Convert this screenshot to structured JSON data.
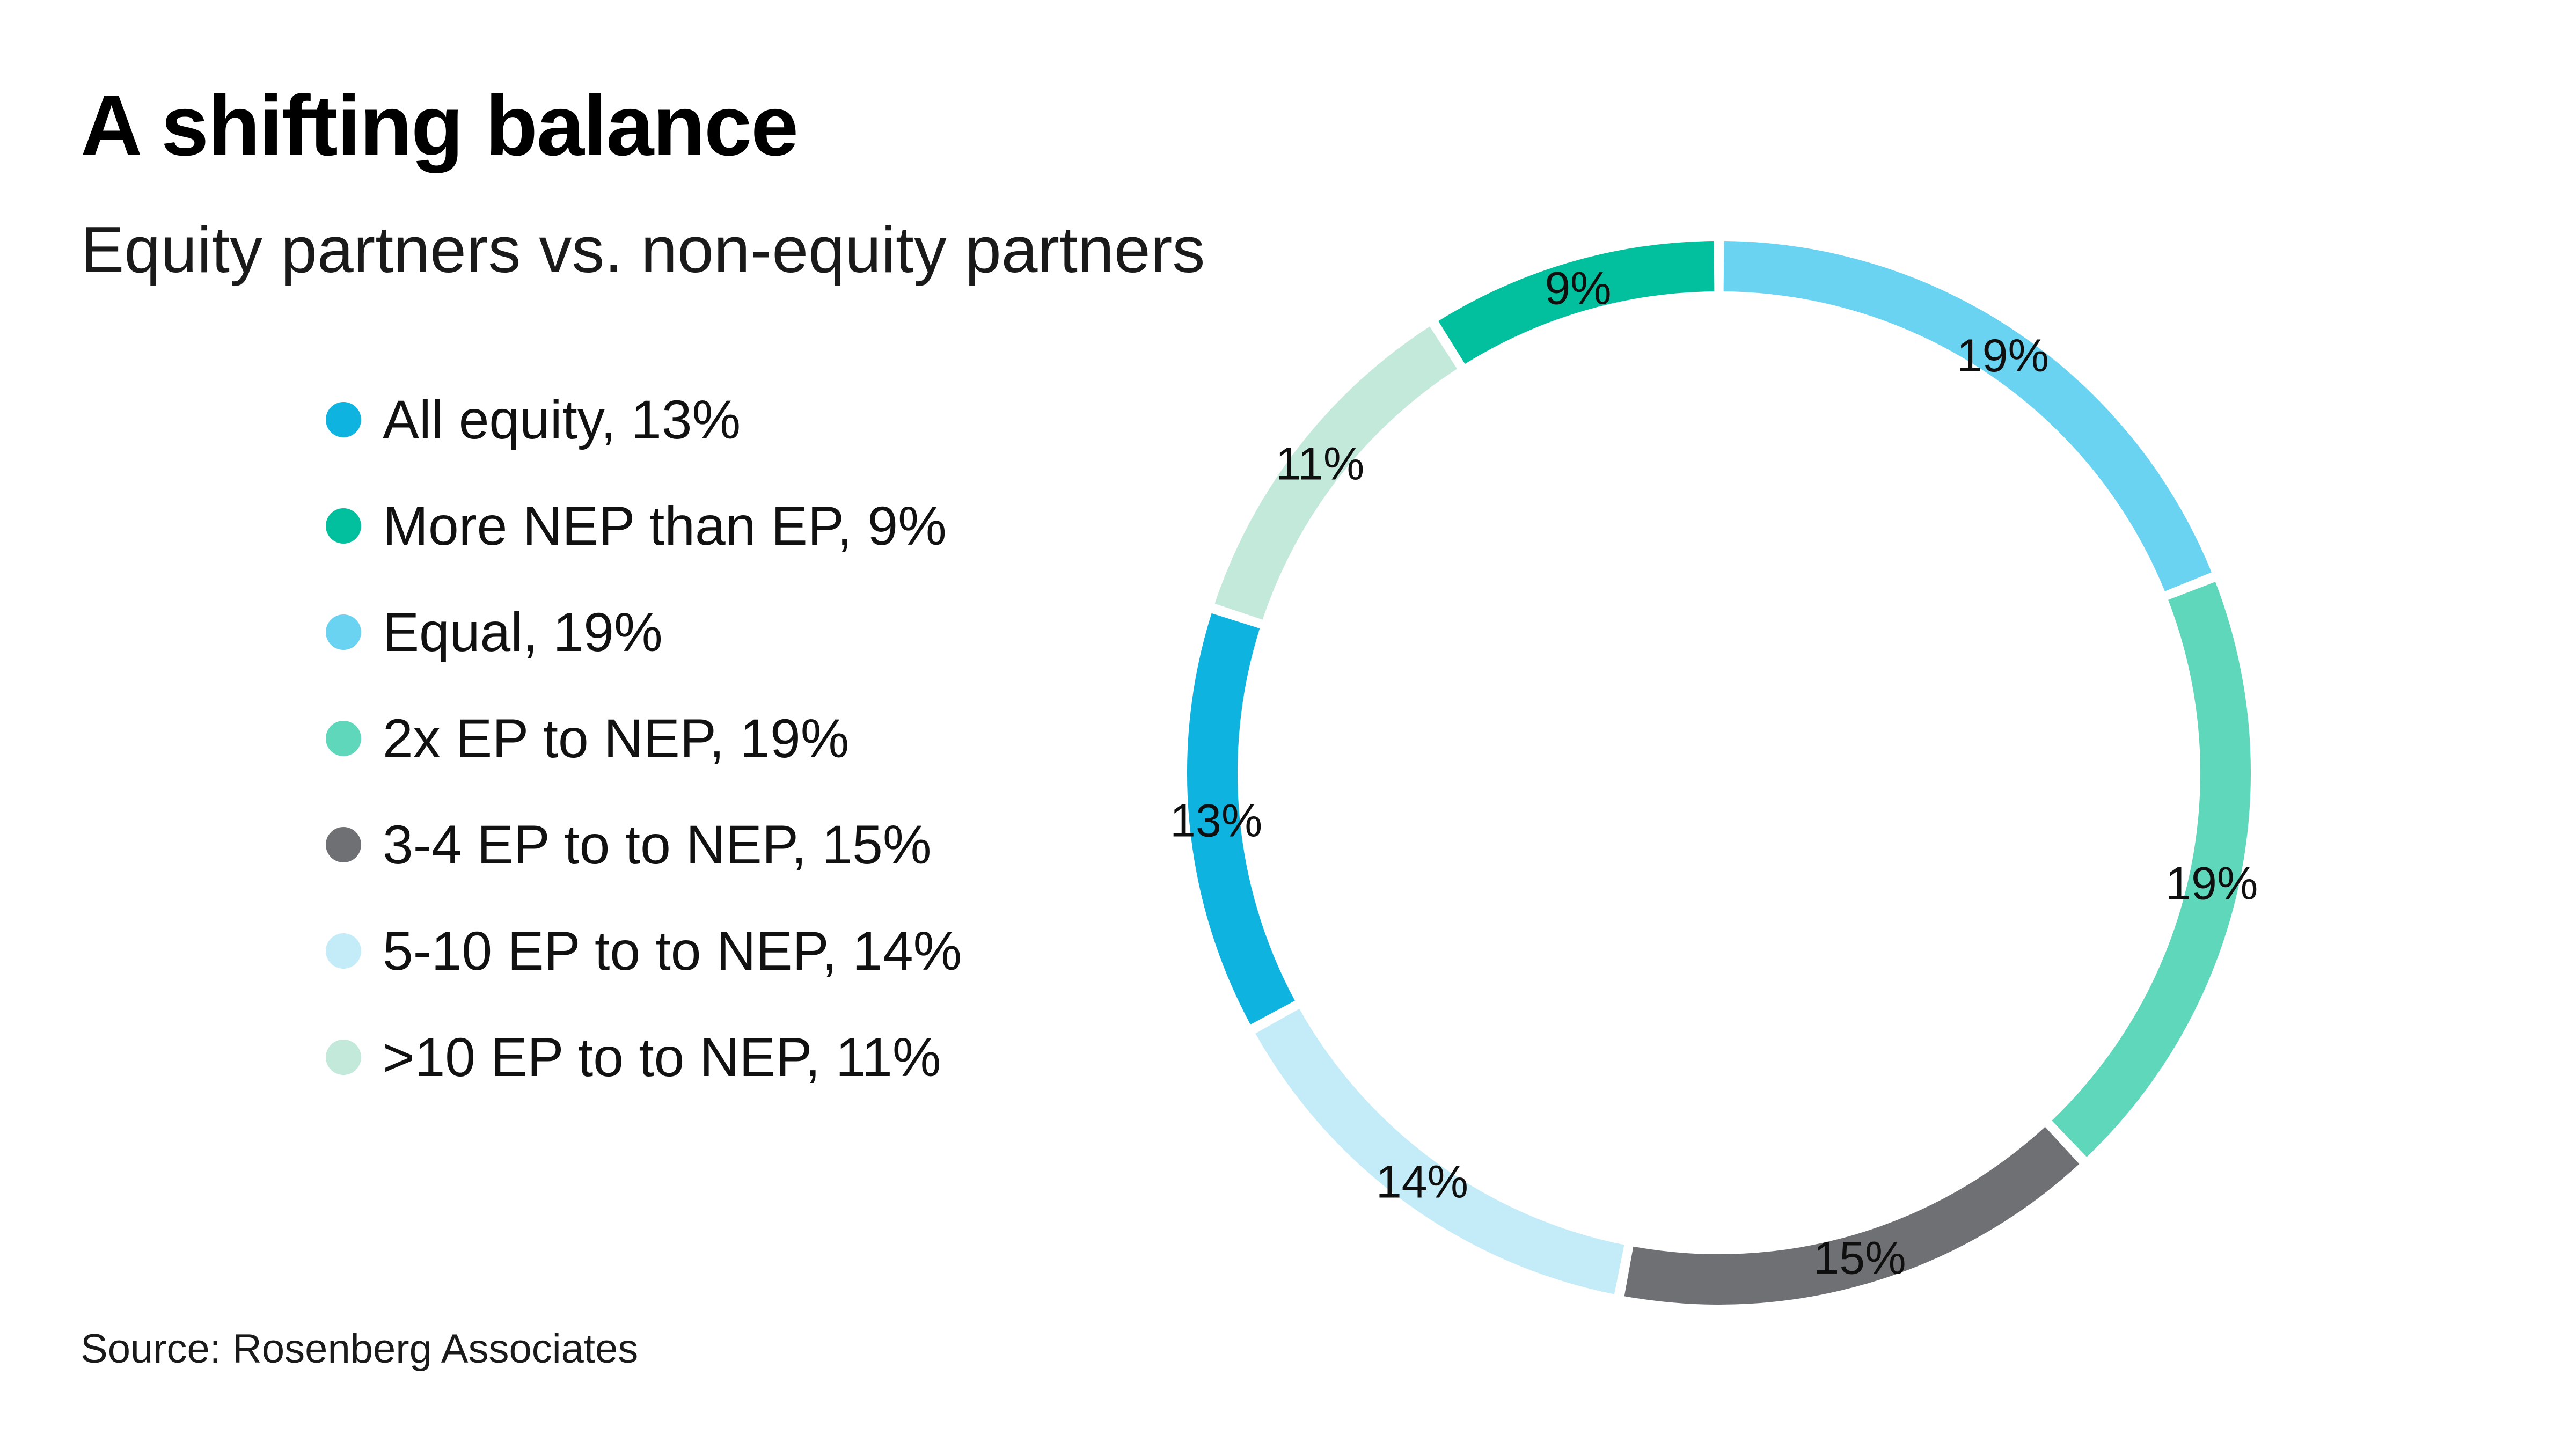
{
  "header": {
    "title": "A shifting balance",
    "subtitle": "Equity partners vs. non-equity partners"
  },
  "source": {
    "text": "Source: Rosenberg Associates"
  },
  "chart_data": {
    "type": "pie",
    "subtype": "donut",
    "title": "A shifting balance",
    "subtitle": "Equity partners vs. non-equity partners",
    "legend_position": "left",
    "start_angle": "12-o-clock",
    "direction": "clockwise",
    "background": "#ffffff",
    "label_color": "#0f0f0f",
    "series": [
      {
        "name": "All equity",
        "value": 13,
        "color": "#0fb3e0",
        "legend_label": "All equity, 13%",
        "slice_label": "13%"
      },
      {
        "name": "More NEP than EP",
        "value": 9,
        "color": "#02bf9d",
        "legend_label": "More NEP than EP, 9%",
        "slice_label": "9%"
      },
      {
        "name": "Equal",
        "value": 19,
        "color": "#69d3f1",
        "legend_label": "Equal, 19%",
        "slice_label": "19%"
      },
      {
        "name": "2x EP to NEP",
        "value": 19,
        "color": "#5ed7bb",
        "legend_label": "2x EP to NEP, 19%",
        "slice_label": "19%"
      },
      {
        "name": "3-4 EP to to NEP",
        "value": 15,
        "color": "#6f7074",
        "legend_label": "3-4 EP to to NEP, 15%",
        "slice_label": "15%"
      },
      {
        "name": "5-10 EP to to NEP",
        "value": 14,
        "color": "#c3ecf8",
        "legend_label": "5-10 EP to to NEP, 14%",
        "slice_label": "14%"
      },
      {
        "name": ">10 EP to to NEP",
        "value": 11,
        "color": "#c2e9d9",
        "legend_label": ">10 EP to to NEP, 11%",
        "slice_label": "11%"
      }
    ],
    "draw_order": [
      2,
      3,
      4,
      5,
      0,
      6,
      1
    ],
    "draw_order_clockwise_from_top": [
      "Equal",
      "2x EP to NEP",
      "3-4 EP to to NEP",
      "5-10 EP to to NEP",
      "All equity",
      ">10 EP to to NEP",
      "More NEP than EP"
    ]
  }
}
